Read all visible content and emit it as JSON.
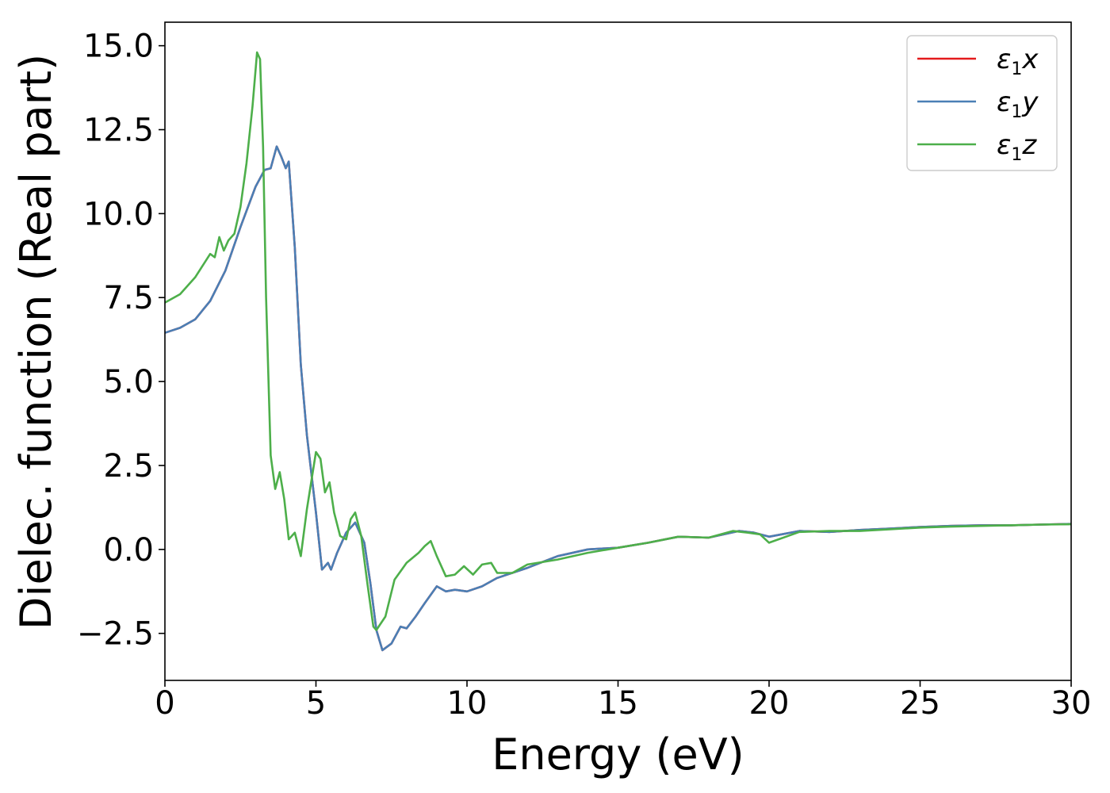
{
  "chart_data": {
    "type": "line",
    "xlabel": "Energy (eV)",
    "ylabel": "Dielec. function (Real part)",
    "xlim": [
      0,
      30
    ],
    "ylim": [
      -3.9,
      15.7
    ],
    "xticks": [
      0,
      5,
      10,
      15,
      20,
      25,
      30
    ],
    "xtick_labels": [
      "0",
      "5",
      "10",
      "15",
      "20",
      "25",
      "30"
    ],
    "yticks": [
      -2.5,
      0.0,
      2.5,
      5.0,
      7.5,
      10.0,
      12.5,
      15.0
    ],
    "ytick_labels": [
      "−2.5",
      "0.0",
      "2.5",
      "5.0",
      "7.5",
      "10.0",
      "12.5",
      "15.0"
    ],
    "grid": false,
    "legend_position": "top-right",
    "series": [
      {
        "name": "ε₁x",
        "legend_base": "ε",
        "legend_sub": "1",
        "legend_var": "x",
        "color": "#e41a1c",
        "x": [
          0,
          0.5,
          1.0,
          1.5,
          2.0,
          2.5,
          3.0,
          3.3,
          3.5,
          3.7,
          3.85,
          4.0,
          4.1,
          4.3,
          4.5,
          4.7,
          5.0,
          5.2,
          5.4,
          5.5,
          5.7,
          6.0,
          6.3,
          6.6,
          6.8,
          7.0,
          7.2,
          7.5,
          7.8,
          8.0,
          8.3,
          8.6,
          9.0,
          9.3,
          9.6,
          10.0,
          10.5,
          11.0,
          12.0,
          13.0,
          14.0,
          15.0,
          16.0,
          17.0,
          18.0,
          19.0,
          19.5,
          20.0,
          21.0,
          22.0,
          23.0,
          24.0,
          25.0,
          26.0,
          27.0,
          28.0,
          29.0,
          30.0
        ],
        "y": [
          6.45,
          6.6,
          6.85,
          7.4,
          8.3,
          9.6,
          10.8,
          11.3,
          11.35,
          12.0,
          11.7,
          11.35,
          11.55,
          9.0,
          5.5,
          3.4,
          1.1,
          -0.6,
          -0.4,
          -0.6,
          -0.1,
          0.5,
          0.8,
          0.2,
          -1.0,
          -2.4,
          -3.0,
          -2.8,
          -2.3,
          -2.35,
          -2.0,
          -1.6,
          -1.1,
          -1.25,
          -1.2,
          -1.25,
          -1.1,
          -0.85,
          -0.55,
          -0.2,
          0.0,
          0.05,
          0.2,
          0.38,
          0.35,
          0.55,
          0.5,
          0.38,
          0.55,
          0.52,
          0.58,
          0.62,
          0.67,
          0.7,
          0.72,
          0.72,
          0.74,
          0.76
        ]
      },
      {
        "name": "ε₁y",
        "legend_base": "ε",
        "legend_sub": "1",
        "legend_var": "y",
        "color": "#4a7fb5",
        "x": [
          0,
          0.5,
          1.0,
          1.5,
          2.0,
          2.5,
          3.0,
          3.3,
          3.5,
          3.7,
          3.85,
          4.0,
          4.1,
          4.3,
          4.5,
          4.7,
          5.0,
          5.2,
          5.4,
          5.5,
          5.7,
          6.0,
          6.3,
          6.6,
          6.8,
          7.0,
          7.2,
          7.5,
          7.8,
          8.0,
          8.3,
          8.6,
          9.0,
          9.3,
          9.6,
          10.0,
          10.5,
          11.0,
          12.0,
          13.0,
          14.0,
          15.0,
          16.0,
          17.0,
          18.0,
          19.0,
          19.5,
          20.0,
          21.0,
          22.0,
          23.0,
          24.0,
          25.0,
          26.0,
          27.0,
          28.0,
          29.0,
          30.0
        ],
        "y": [
          6.45,
          6.6,
          6.85,
          7.4,
          8.3,
          9.6,
          10.8,
          11.3,
          11.35,
          12.0,
          11.7,
          11.35,
          11.55,
          9.0,
          5.5,
          3.4,
          1.1,
          -0.6,
          -0.4,
          -0.6,
          -0.1,
          0.5,
          0.8,
          0.2,
          -1.0,
          -2.4,
          -3.0,
          -2.8,
          -2.3,
          -2.35,
          -2.0,
          -1.6,
          -1.1,
          -1.25,
          -1.2,
          -1.25,
          -1.1,
          -0.85,
          -0.55,
          -0.2,
          0.0,
          0.05,
          0.2,
          0.38,
          0.35,
          0.55,
          0.5,
          0.38,
          0.55,
          0.52,
          0.58,
          0.62,
          0.67,
          0.7,
          0.72,
          0.72,
          0.74,
          0.76
        ]
      },
      {
        "name": "ε₁z",
        "legend_base": "ε",
        "legend_sub": "1",
        "legend_var": "z",
        "color": "#4daf4a",
        "x": [
          0,
          0.5,
          1.0,
          1.5,
          1.65,
          1.8,
          1.95,
          2.1,
          2.3,
          2.5,
          2.7,
          2.9,
          3.05,
          3.15,
          3.25,
          3.35,
          3.5,
          3.65,
          3.8,
          3.95,
          4.1,
          4.3,
          4.5,
          4.7,
          5.0,
          5.15,
          5.3,
          5.45,
          5.6,
          5.8,
          6.0,
          6.15,
          6.3,
          6.5,
          6.7,
          6.9,
          7.0,
          7.3,
          7.6,
          8.0,
          8.4,
          8.6,
          8.8,
          9.0,
          9.3,
          9.6,
          9.9,
          10.2,
          10.5,
          10.8,
          11.0,
          11.5,
          12.0,
          13.0,
          14.0,
          15.0,
          16.0,
          17.0,
          18.0,
          18.8,
          19.3,
          19.7,
          20.0,
          21.0,
          22.0,
          23.0,
          24.0,
          25.0,
          26.0,
          27.0,
          28.0,
          29.0,
          30.0
        ],
        "y": [
          7.35,
          7.6,
          8.1,
          8.8,
          8.7,
          9.3,
          8.9,
          9.2,
          9.4,
          10.2,
          11.5,
          13.2,
          14.8,
          14.6,
          12.0,
          7.5,
          2.8,
          1.8,
          2.3,
          1.5,
          0.3,
          0.5,
          -0.2,
          1.2,
          2.9,
          2.7,
          1.7,
          2.0,
          1.1,
          0.4,
          0.3,
          0.9,
          1.1,
          0.4,
          -1.0,
          -2.3,
          -2.4,
          -2.0,
          -0.9,
          -0.4,
          -0.1,
          0.1,
          0.25,
          -0.2,
          -0.8,
          -0.75,
          -0.5,
          -0.75,
          -0.45,
          -0.4,
          -0.7,
          -0.7,
          -0.45,
          -0.3,
          -0.1,
          0.05,
          0.2,
          0.38,
          0.35,
          0.55,
          0.5,
          0.45,
          0.2,
          0.52,
          0.55,
          0.55,
          0.6,
          0.65,
          0.68,
          0.7,
          0.72,
          0.74,
          0.75
        ]
      }
    ]
  }
}
